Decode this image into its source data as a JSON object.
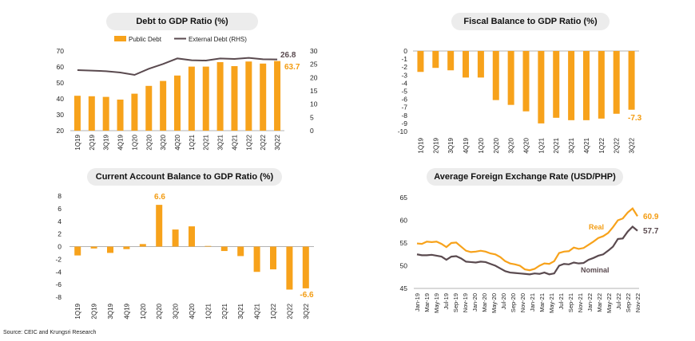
{
  "colors": {
    "bar": "#f7a21b",
    "line_dark": "#5a4a4f",
    "orange_label": "#f39c12",
    "axis": "#9a9a9a"
  },
  "source": "Source: CEIC and Krungsri Research",
  "chart_data": [
    {
      "type": "bar+line",
      "title": "Debt to GDP Ratio (%)",
      "categories": [
        "1Q19",
        "2Q19",
        "3Q19",
        "4Q19",
        "1Q20",
        "2Q20",
        "3Q20",
        "4Q20",
        "1Q21",
        "2Q21",
        "3Q21",
        "4Q21",
        "1Q22",
        "2Q22",
        "3Q22"
      ],
      "series": [
        {
          "name": "Public Debt",
          "type": "bar",
          "axis": "left",
          "values": [
            41.9,
            41.6,
            41.2,
            39.5,
            43.2,
            48.1,
            51.2,
            54.6,
            60.2,
            60.2,
            63.0,
            60.5,
            63.4,
            62.1,
            63.7
          ]
        },
        {
          "name": "External Debt (RHS)",
          "type": "line",
          "axis": "right",
          "values": [
            22.8,
            22.6,
            22.4,
            21.9,
            21.0,
            23.3,
            25.1,
            27.2,
            26.5,
            26.4,
            27.2,
            27.0,
            27.4,
            26.9,
            26.8
          ]
        }
      ],
      "ylim_left": [
        20,
        70
      ],
      "yticks_left": [
        "20",
        "30",
        "40",
        "50",
        "60",
        "70"
      ],
      "ylim_right": [
        0,
        30
      ],
      "yticks_right": [
        "0",
        "5",
        "10",
        "15",
        "20",
        "25",
        "30"
      ],
      "end_labels": [
        "26.8",
        "63.7"
      ]
    },
    {
      "type": "bar",
      "title": "Fiscal Balance to GDP Ratio (%)",
      "categories": [
        "1Q19",
        "2Q19",
        "3Q19",
        "4Q19",
        "1Q20",
        "2Q20",
        "3Q20",
        "4Q20",
        "1Q21",
        "2Q21",
        "3Q21",
        "4Q21",
        "1Q22",
        "2Q22",
        "3Q22"
      ],
      "values": [
        -2.6,
        -2.1,
        -2.4,
        -3.3,
        -3.3,
        -6.1,
        -6.7,
        -7.5,
        -9.0,
        -8.3,
        -8.6,
        -8.6,
        -8.4,
        -7.8,
        -7.3
      ],
      "ylim": [
        -10,
        0
      ],
      "yticks": [
        "0",
        "-1",
        "-2",
        "-3",
        "-4",
        "-5",
        "-6",
        "-7",
        "-8",
        "-9",
        "-10"
      ],
      "end_label": "-7.3"
    },
    {
      "type": "bar",
      "title": "Current Account Balance to GDP Ratio (%)",
      "categories": [
        "1Q19",
        "2Q19",
        "3Q19",
        "4Q19",
        "1Q20",
        "2Q20",
        "3Q20",
        "4Q20",
        "1Q21",
        "2Q21",
        "3Q21",
        "4Q21",
        "1Q22",
        "2Q22",
        "3Q22"
      ],
      "values": [
        -1.4,
        -0.3,
        -1.0,
        -0.4,
        0.4,
        6.6,
        2.7,
        3.2,
        0.1,
        -0.7,
        -1.5,
        -4.0,
        -3.6,
        -6.8,
        -6.6
      ],
      "ylim": [
        -8,
        8
      ],
      "yticks": [
        "8",
        "6",
        "4",
        "2",
        "0",
        "-2",
        "-4",
        "-6",
        "-8"
      ],
      "labels": [
        "6.6",
        "-6.6"
      ]
    },
    {
      "type": "line",
      "title": "Average Foreign Exchange Rate (USD/PHP)",
      "x_ticks": [
        "Jan-19",
        "Mar-19",
        "May-19",
        "Jul-19",
        "Sep-19",
        "Nov-19",
        "Jan-20",
        "Mar-20",
        "May-20",
        "Jul-20",
        "Sep-20",
        "Nov-20",
        "Jan-21",
        "Mar-21",
        "May-21",
        "Jul-21",
        "Sep-21",
        "Nov-21",
        "Jan-22",
        "Mar-22",
        "May-22",
        "Jul-22",
        "Sep-22",
        "Nov-22"
      ],
      "ylim": [
        45,
        65
      ],
      "yticks": [
        "65",
        "60",
        "55",
        "50",
        "45"
      ],
      "series": [
        {
          "name": "Real",
          "values": [
            54.9,
            54.8,
            55.3,
            55.2,
            55.3,
            54.8,
            54.1,
            55.0,
            55.1,
            54.2,
            53.3,
            53.0,
            53.1,
            53.3,
            53.1,
            52.7,
            52.5,
            51.9,
            51.0,
            50.5,
            50.3,
            50.0,
            49.2,
            49.0,
            49.3,
            50.0,
            50.5,
            50.4,
            51.0,
            52.8,
            53.1,
            53.2,
            54.0,
            53.7,
            53.9,
            54.6,
            55.3,
            56.1,
            56.5,
            57.2,
            58.5,
            60.0,
            60.4,
            61.7,
            62.6,
            60.9
          ]
        },
        {
          "name": "Nominal",
          "values": [
            52.5,
            52.3,
            52.3,
            52.4,
            52.2,
            52.0,
            51.3,
            52.0,
            52.1,
            51.6,
            50.9,
            50.8,
            50.7,
            50.9,
            50.8,
            50.4,
            50.0,
            49.4,
            48.8,
            48.5,
            48.4,
            48.3,
            48.2,
            48.1,
            48.3,
            48.2,
            48.5,
            48.1,
            48.3,
            50.0,
            50.4,
            50.3,
            50.7,
            50.5,
            50.6,
            51.3,
            51.7,
            52.2,
            52.5,
            53.3,
            54.2,
            55.9,
            56.0,
            57.5,
            58.6,
            57.7
          ]
        }
      ],
      "labels": {
        "real": "Real",
        "nominal": "Nominal",
        "real_end": "60.9",
        "nominal_end": "57.7"
      }
    }
  ]
}
